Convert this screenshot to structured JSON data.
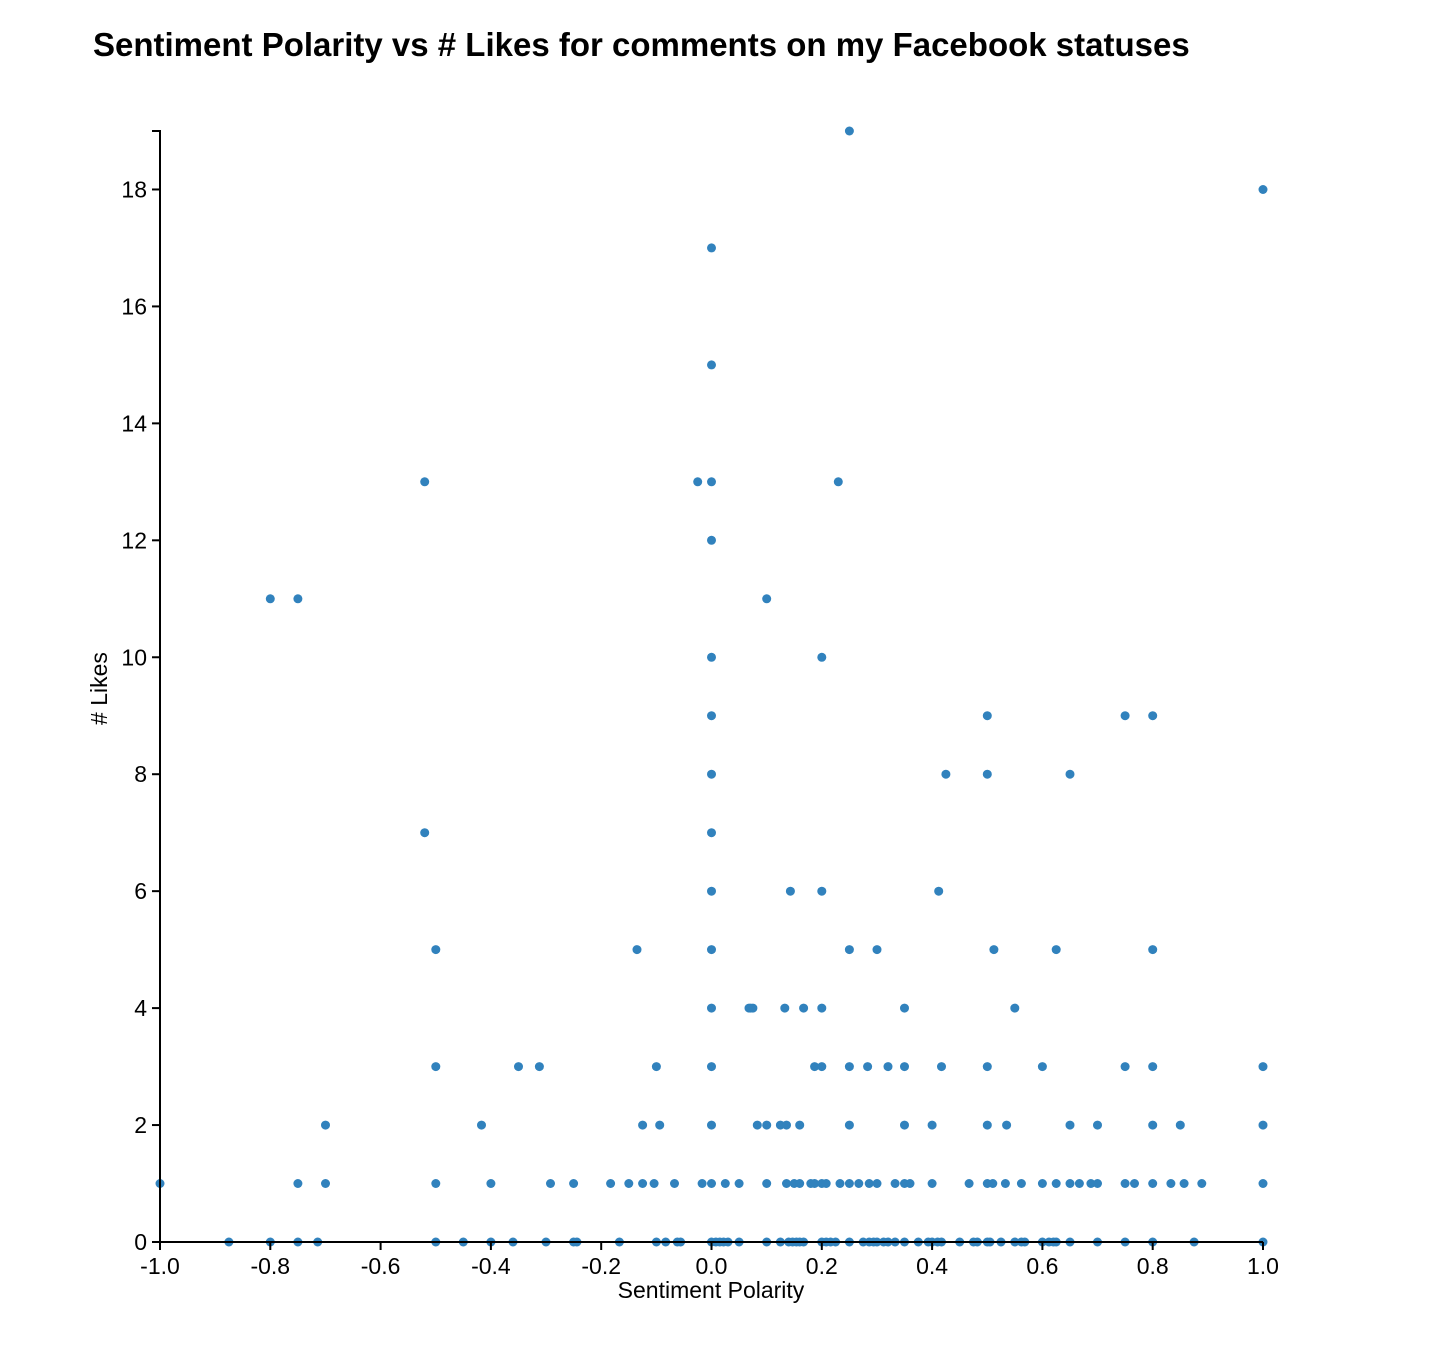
{
  "chart_data": {
    "type": "scatter",
    "title": "Sentiment Polarity vs # Likes for comments on my Facebook statuses",
    "xlabel": "Sentiment Polarity",
    "ylabel": "# Likes",
    "xlim": [
      -1.0,
      1.0
    ],
    "ylim": [
      0,
      19
    ],
    "xticks": [
      "-1.0",
      "-0.8",
      "-0.6",
      "-0.4",
      "-0.2",
      "0.0",
      "0.2",
      "0.4",
      "0.6",
      "0.8",
      "1.0"
    ],
    "yticks": [
      "0",
      "2",
      "4",
      "6",
      "8",
      "10",
      "12",
      "14",
      "16",
      "18"
    ],
    "grid": false,
    "point_color": "#3182bd",
    "points": [
      [
        -1.0,
        1
      ],
      [
        -0.875,
        0
      ],
      [
        -0.8,
        0
      ],
      [
        -0.75,
        0
      ],
      [
        -0.714,
        0
      ],
      [
        -0.75,
        1
      ],
      [
        -0.7,
        1
      ],
      [
        -0.7,
        2
      ],
      [
        -0.8,
        11
      ],
      [
        -0.75,
        11
      ],
      [
        -0.52,
        13
      ],
      [
        -0.52,
        7
      ],
      [
        -0.5,
        5
      ],
      [
        -0.5,
        3
      ],
      [
        -0.5,
        1
      ],
      [
        -0.5,
        0
      ],
      [
        -0.45,
        0
      ],
      [
        -0.4,
        0
      ],
      [
        -0.36,
        0
      ],
      [
        -0.3,
        0
      ],
      [
        -0.25,
        0
      ],
      [
        -0.244,
        0
      ],
      [
        -0.167,
        0
      ],
      [
        -0.1,
        0
      ],
      [
        -0.083,
        0
      ],
      [
        -0.062,
        0
      ],
      [
        -0.056,
        0
      ],
      [
        -0.417,
        2
      ],
      [
        -0.4,
        1
      ],
      [
        -0.35,
        3
      ],
      [
        -0.312,
        3
      ],
      [
        -0.292,
        1
      ],
      [
        -0.25,
        1
      ],
      [
        -0.183,
        1
      ],
      [
        -0.15,
        1
      ],
      [
        -0.125,
        1
      ],
      [
        -0.104,
        1
      ],
      [
        -0.067,
        1
      ],
      [
        -0.135,
        5
      ],
      [
        -0.125,
        2
      ],
      [
        -0.1,
        3
      ],
      [
        -0.094,
        2
      ],
      [
        -0.017,
        1
      ],
      [
        0.0,
        1
      ],
      [
        0.025,
        1
      ],
      [
        0.05,
        1
      ],
      [
        -0.025,
        13
      ],
      [
        0.0,
        13
      ],
      [
        0.0,
        12
      ],
      [
        0.0,
        17
      ],
      [
        0.0,
        15
      ],
      [
        0.0,
        10
      ],
      [
        0.0,
        9
      ],
      [
        0.0,
        8
      ],
      [
        0.0,
        7
      ],
      [
        0.0,
        6
      ],
      [
        0.0,
        5
      ],
      [
        0.0,
        4
      ],
      [
        0.0,
        3
      ],
      [
        0.0,
        2
      ],
      [
        0.0,
        0
      ],
      [
        0.008,
        0
      ],
      [
        0.015,
        0
      ],
      [
        0.022,
        0
      ],
      [
        0.03,
        0
      ],
      [
        0.05,
        0
      ],
      [
        0.1,
        0
      ],
      [
        0.125,
        0
      ],
      [
        0.14,
        0
      ],
      [
        0.147,
        0
      ],
      [
        0.154,
        0
      ],
      [
        0.16,
        0
      ],
      [
        0.167,
        0
      ],
      [
        0.2,
        0
      ],
      [
        0.208,
        0
      ],
      [
        0.216,
        0
      ],
      [
        0.225,
        0
      ],
      [
        0.25,
        0
      ],
      [
        0.275,
        0
      ],
      [
        0.286,
        0
      ],
      [
        0.294,
        0
      ],
      [
        0.3,
        0
      ],
      [
        0.312,
        0
      ],
      [
        0.32,
        0
      ],
      [
        0.333,
        0
      ],
      [
        0.35,
        0
      ],
      [
        0.375,
        0
      ],
      [
        0.393,
        0
      ],
      [
        0.4,
        0
      ],
      [
        0.41,
        0
      ],
      [
        0.417,
        0
      ],
      [
        0.45,
        0
      ],
      [
        0.475,
        0
      ],
      [
        0.482,
        0
      ],
      [
        0.5,
        0
      ],
      [
        0.505,
        0
      ],
      [
        0.525,
        0
      ],
      [
        0.55,
        0
      ],
      [
        0.562,
        0
      ],
      [
        0.568,
        0
      ],
      [
        0.6,
        0
      ],
      [
        0.612,
        0
      ],
      [
        0.62,
        0
      ],
      [
        0.625,
        0
      ],
      [
        0.65,
        0
      ],
      [
        0.7,
        0
      ],
      [
        0.75,
        0
      ],
      [
        0.8,
        0
      ],
      [
        0.875,
        0
      ],
      [
        1.0,
        0
      ],
      [
        0.068,
        4
      ],
      [
        0.071,
        4
      ],
      [
        0.075,
        4
      ],
      [
        0.083,
        2
      ],
      [
        0.1,
        2
      ],
      [
        0.125,
        2
      ],
      [
        0.136,
        2
      ],
      [
        0.16,
        2
      ],
      [
        0.1,
        11
      ],
      [
        0.2,
        10
      ],
      [
        0.23,
        13
      ],
      [
        0.25,
        19
      ],
      [
        0.143,
        6
      ],
      [
        0.2,
        6
      ],
      [
        0.1,
        1
      ],
      [
        0.136,
        1
      ],
      [
        0.15,
        1
      ],
      [
        0.16,
        1
      ],
      [
        0.18,
        1
      ],
      [
        0.187,
        1
      ],
      [
        0.2,
        1
      ],
      [
        0.208,
        1
      ],
      [
        0.133,
        4
      ],
      [
        0.167,
        4
      ],
      [
        0.2,
        4
      ],
      [
        0.187,
        3
      ],
      [
        0.2,
        3
      ],
      [
        0.233,
        1
      ],
      [
        0.25,
        1
      ],
      [
        0.267,
        1
      ],
      [
        0.286,
        1
      ],
      [
        0.3,
        1
      ],
      [
        0.333,
        1
      ],
      [
        0.35,
        1
      ],
      [
        0.36,
        1
      ],
      [
        0.4,
        1
      ],
      [
        0.25,
        5
      ],
      [
        0.3,
        5
      ],
      [
        0.25,
        3
      ],
      [
        0.283,
        3
      ],
      [
        0.32,
        3
      ],
      [
        0.35,
        3
      ],
      [
        0.25,
        2
      ],
      [
        0.35,
        2
      ],
      [
        0.35,
        4
      ],
      [
        0.4,
        2
      ],
      [
        0.417,
        3
      ],
      [
        0.412,
        6
      ],
      [
        0.425,
        8
      ],
      [
        0.467,
        1
      ],
      [
        0.5,
        1
      ],
      [
        0.51,
        1
      ],
      [
        0.533,
        1
      ],
      [
        0.562,
        1
      ],
      [
        0.6,
        1
      ],
      [
        0.625,
        1
      ],
      [
        0.65,
        1
      ],
      [
        0.667,
        1
      ],
      [
        0.688,
        1
      ],
      [
        0.7,
        1
      ],
      [
        0.75,
        1
      ],
      [
        0.767,
        1
      ],
      [
        0.8,
        1
      ],
      [
        0.833,
        1
      ],
      [
        0.857,
        1
      ],
      [
        0.889,
        1
      ],
      [
        1.0,
        1
      ],
      [
        0.5,
        9
      ],
      [
        0.5,
        8
      ],
      [
        0.512,
        5
      ],
      [
        0.55,
        4
      ],
      [
        0.5,
        3
      ],
      [
        0.5,
        2
      ],
      [
        0.535,
        2
      ],
      [
        0.6,
        3
      ],
      [
        0.625,
        5
      ],
      [
        0.65,
        8
      ],
      [
        0.65,
        2
      ],
      [
        0.7,
        2
      ],
      [
        0.75,
        9
      ],
      [
        0.8,
        9
      ],
      [
        0.8,
        5
      ],
      [
        0.75,
        3
      ],
      [
        0.8,
        3
      ],
      [
        0.8,
        2
      ],
      [
        0.85,
        2
      ],
      [
        1.0,
        18
      ],
      [
        1.0,
        3
      ],
      [
        1.0,
        2
      ]
    ]
  }
}
